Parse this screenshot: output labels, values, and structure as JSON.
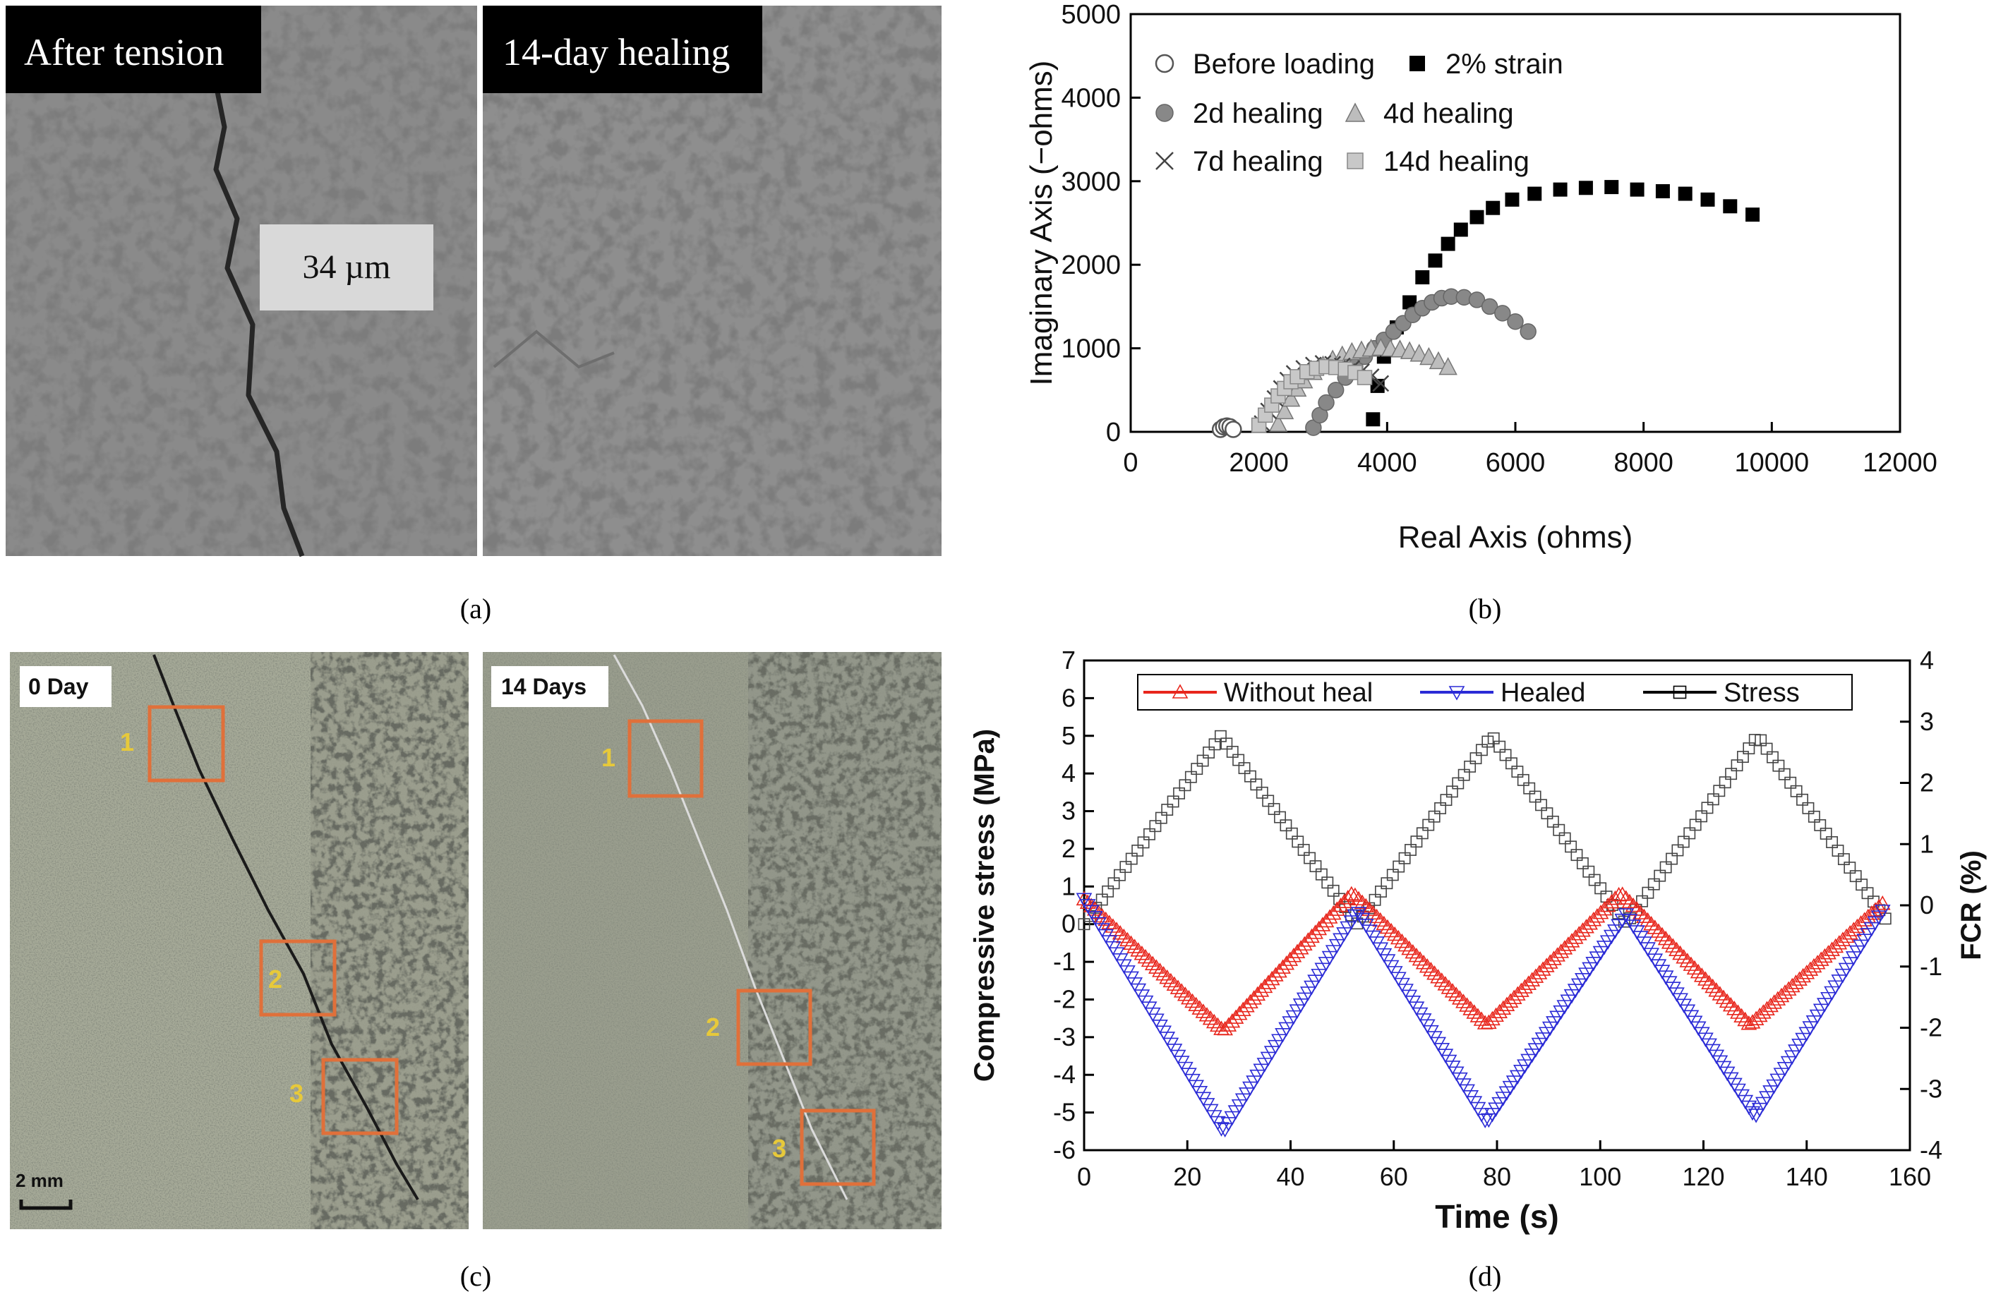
{
  "panel_a": {
    "caption": "(a)",
    "left_label": "After tension",
    "right_label": "14-day healing",
    "crack_width_label": "34 µm"
  },
  "panel_c": {
    "caption": "(c)",
    "left_label": "0 Day",
    "right_label": "14 Days",
    "scale_bar": "2 mm",
    "left_boxes": [
      "1",
      "2",
      "3"
    ],
    "right_boxes": [
      "1",
      "2",
      "3"
    ]
  },
  "colors": {
    "red": "#e8261c",
    "blue": "#2b2bd6",
    "orange": "#e0703a",
    "box_number": "#e7c93a"
  },
  "chart_data": [
    {
      "id": "b",
      "caption": "(b)",
      "type": "scatter",
      "xlabel": "Real Axis (ohms)",
      "ylabel": "Imaginary Axis (−ohms)",
      "xlim": [
        0,
        12000
      ],
      "ylim": [
        0,
        5000
      ],
      "xticks": [
        0,
        2000,
        4000,
        6000,
        8000,
        10000,
        12000
      ],
      "yticks": [
        0,
        1000,
        2000,
        3000,
        4000,
        5000
      ],
      "legend_position": "top-left",
      "series": [
        {
          "name": "Before loading",
          "marker": "open-circle",
          "x": [
            1400,
            1450,
            1500,
            1550,
            1600
          ],
          "y": [
            30,
            60,
            70,
            60,
            30
          ]
        },
        {
          "name": "2% strain",
          "marker": "filled-square",
          "x": [
            3780,
            3850,
            3950,
            4150,
            4350,
            4550,
            4750,
            4950,
            5150,
            5400,
            5650,
            5950,
            6300,
            6700,
            7100,
            7500,
            7900,
            8300,
            8650,
            9000,
            9350,
            9700
          ],
          "y": [
            150,
            550,
            900,
            1250,
            1550,
            1850,
            2050,
            2250,
            2420,
            2570,
            2680,
            2780,
            2850,
            2900,
            2920,
            2930,
            2900,
            2880,
            2850,
            2780,
            2700,
            2600
          ]
        },
        {
          "name": "2d healing",
          "marker": "filled-circle",
          "x": [
            2850,
            2950,
            3050,
            3200,
            3350,
            3500,
            3650,
            3800,
            3950,
            4100,
            4250,
            4400,
            4550,
            4700,
            4850,
            5000,
            5200,
            5400,
            5600,
            5800,
            6000,
            6200
          ],
          "y": [
            50,
            200,
            350,
            500,
            650,
            780,
            900,
            1000,
            1100,
            1200,
            1300,
            1400,
            1480,
            1550,
            1600,
            1620,
            1610,
            1580,
            1500,
            1420,
            1320,
            1200
          ]
        },
        {
          "name": "4d healing",
          "marker": "filled-triangle",
          "x": [
            2300,
            2400,
            2500,
            2600,
            2700,
            2850,
            3000,
            3150,
            3300,
            3450,
            3600,
            3750,
            3900,
            4050,
            4200,
            4350,
            4500,
            4650,
            4800,
            4950
          ],
          "y": [
            100,
            250,
            400,
            520,
            620,
            720,
            800,
            870,
            920,
            960,
            980,
            1000,
            1010,
            1000,
            990,
            970,
            940,
            900,
            850,
            780
          ]
        },
        {
          "name": "7d healing",
          "marker": "cross",
          "x": [
            2050,
            2150,
            2250,
            2350,
            2450,
            2550,
            2700,
            2850,
            3000,
            3150,
            3300,
            3450,
            3600,
            3750,
            3900
          ],
          "y": [
            100,
            250,
            400,
            520,
            620,
            700,
            760,
            800,
            820,
            810,
            790,
            760,
            720,
            660,
            580
          ]
        },
        {
          "name": "14d healing",
          "marker": "filled-square-gray",
          "x": [
            2000,
            2100,
            2200,
            2300,
            2400,
            2500,
            2600,
            2750,
            2900,
            3050,
            3200,
            3350,
            3500,
            3650
          ],
          "y": [
            80,
            200,
            320,
            430,
            520,
            600,
            660,
            720,
            760,
            780,
            770,
            750,
            710,
            650
          ]
        }
      ]
    },
    {
      "id": "d",
      "caption": "(d)",
      "type": "line",
      "xlabel": "Time (s)",
      "ylabel_left": "Compressive stress (MPa)",
      "ylabel_right": "FCR (%)",
      "xlim": [
        0,
        160
      ],
      "ylim_left": [
        -6,
        7
      ],
      "ylim_right": [
        -4,
        4
      ],
      "xticks": [
        0,
        20,
        40,
        60,
        80,
        100,
        120,
        140,
        160
      ],
      "yticks_left": [
        -6,
        -5,
        -4,
        -3,
        -2,
        -1,
        0,
        1,
        2,
        3,
        4,
        5,
        6,
        7
      ],
      "yticks_right": [
        -4,
        -3,
        -2,
        -1,
        0,
        1,
        2,
        3,
        4
      ],
      "legend_position": "top",
      "series": [
        {
          "name": "Without heal",
          "axis": "right",
          "marker": "open-triangle-up",
          "x": [
            0,
            27,
            52,
            78,
            104,
            129,
            155
          ],
          "y": [
            0.1,
            -2.05,
            0.2,
            -1.95,
            0.2,
            -1.95,
            0.05
          ]
        },
        {
          "name": "Healed",
          "axis": "right",
          "marker": "open-triangle-down",
          "x": [
            0,
            27,
            53,
            78,
            105,
            130,
            155
          ],
          "y": [
            0.1,
            -3.7,
            -0.1,
            -3.55,
            -0.15,
            -3.45,
            -0.05
          ]
        },
        {
          "name": "Stress",
          "axis": "left",
          "marker": "open-square",
          "x": [
            0,
            26.5,
            53,
            79,
            105,
            130.5,
            156
          ],
          "y": [
            0,
            5,
            0,
            5,
            0,
            5,
            0
          ]
        }
      ]
    }
  ]
}
